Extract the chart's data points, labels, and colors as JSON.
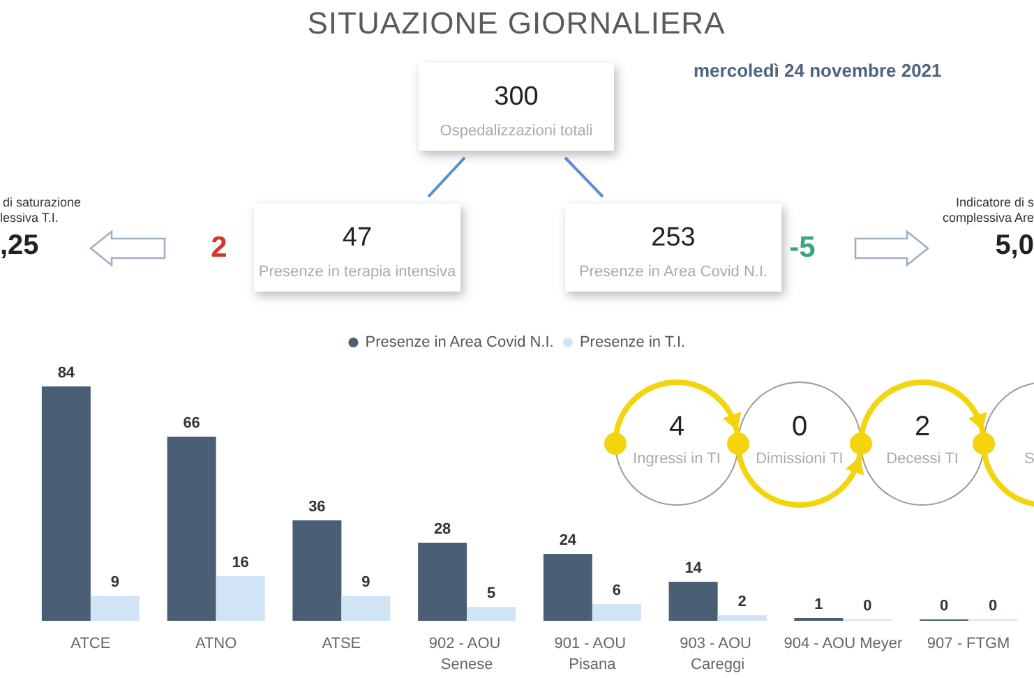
{
  "chart_data": [
    {
      "type": "other",
      "title": "SITUAZIONE GIORNALIERA",
      "subtitle": "mercoledì 24 novembre 2021",
      "data_labels": true,
      "categories": [
        "Ospedalizzazioni totali",
        "Presenze in terapia intensiva",
        "Presenze in Area Covid N.I."
      ],
      "values": [
        300,
        47,
        253
      ],
      "annotations": [
        "2",
        "-5",
        "di saturazione",
        "lessiva T.I.",
        ",25",
        "Indicatore di s",
        "complessiva Are",
        "5,0"
      ]
    },
    {
      "type": "bar",
      "legend": "top",
      "data_labels": true,
      "categories": [
        "ATCE",
        "ATNO",
        "ATSE",
        "902 - AOU Senese",
        "901 - AOU Pisana",
        "903 - AOU Careggi",
        "904 - AOU Meyer",
        "907 - FTGM"
      ],
      "series": [
        {
          "name": "Presenze in Area Covid N.I.",
          "color": "#4a5f74",
          "values": [
            84,
            66,
            36,
            28,
            24,
            14,
            1,
            0
          ]
        },
        {
          "name": "Presenze in T.I.",
          "color": "#d1e4f6",
          "values": [
            9,
            16,
            9,
            5,
            6,
            2,
            0,
            0
          ]
        }
      ]
    },
    {
      "type": "other",
      "data_labels": true,
      "categories": [
        "Ingressi in TI",
        "Dimissioni TI",
        "Decessi TI",
        "S"
      ],
      "values": [
        4,
        0,
        2,
        null
      ]
    }
  ]
}
